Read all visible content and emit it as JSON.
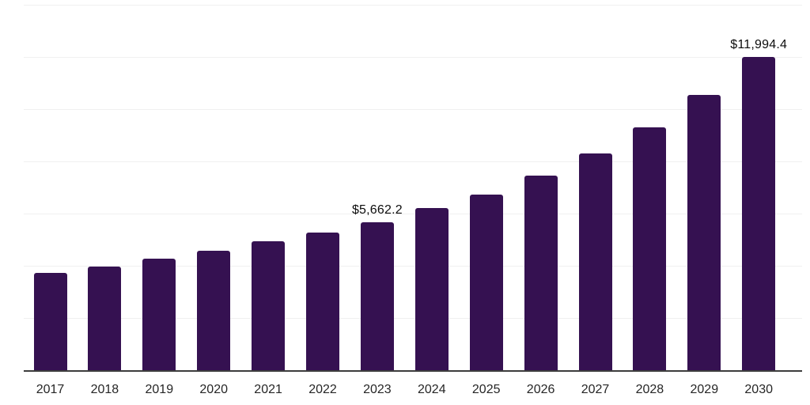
{
  "chart_data": {
    "type": "bar",
    "title": "",
    "xlabel": "",
    "ylabel": "",
    "categories": [
      "2017",
      "2018",
      "2019",
      "2020",
      "2021",
      "2022",
      "2023",
      "2024",
      "2025",
      "2026",
      "2027",
      "2028",
      "2029",
      "2030"
    ],
    "values": [
      3730,
      3970,
      4270,
      4580,
      4940,
      5270,
      5662.2,
      6200,
      6740,
      7440,
      8290,
      9290,
      10550,
      11994.4
    ],
    "data_labels": {
      "2023": "$5,662.2",
      "2030": "$11,994.4"
    },
    "ylim": [
      0,
      14000
    ],
    "gridline_step": 2000,
    "grid": "horizontal",
    "legend_position": "none",
    "y_axis_ticks_visible": false,
    "colors": {
      "bar": "#351151",
      "gridline": "#f0f0f0",
      "axis": "#3d3d3d",
      "tick_text": "#262626",
      "value_label_text": "#0d0d0d",
      "background": "#ffffff"
    }
  }
}
